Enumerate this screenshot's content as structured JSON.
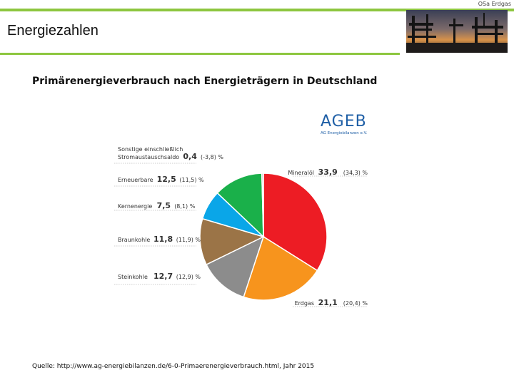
{
  "header": {
    "corner_label": "OSa Erdgas",
    "title": "Energiezahlen"
  },
  "subtitle": "Primärenergieverbrauch nach Energieträgern in Deutschland",
  "logo": {
    "text": "AGEB",
    "subtext": "AG Energiebilanzen e.V."
  },
  "source": "Quelle: http://www.ag-energiebilanzen.de/6-0-Primaerenergieverbrauch.html, Jahr 2015",
  "colors": {
    "accent": "#8dc63f",
    "logo": "#1f5fa6"
  },
  "chart_data": {
    "type": "pie",
    "unit": "%",
    "slices": [
      {
        "name": "Mineralöl",
        "value": 33.9,
        "value_label": "33,9",
        "prev_label": "(34,3) %",
        "color": "#ed1c24"
      },
      {
        "name": "Erdgas",
        "value": 21.1,
        "value_label": "21,1",
        "prev_label": "(20,4) %",
        "color": "#f7941d"
      },
      {
        "name": "Steinkohle",
        "value": 12.7,
        "value_label": "12,7",
        "prev_label": "(12,9) %",
        "color": "#8c8c8c"
      },
      {
        "name": "Braunkohle",
        "value": 11.8,
        "value_label": "11,8",
        "prev_label": "(11,9) %",
        "color": "#9b7447"
      },
      {
        "name": "Kernenergie",
        "value": 7.5,
        "value_label": "7,5",
        "prev_label": "(8,1) %",
        "color": "#0aa6e8"
      },
      {
        "name": "Erneuerbare",
        "value": 12.5,
        "value_label": "12,5",
        "prev_label": "(11,5) %",
        "color": "#1ab04a"
      },
      {
        "name": "Sonstige einschließlich\nStromaustauschsaldo",
        "value": 0.4,
        "value_label": "0,4",
        "prev_label": "(-3,8) %",
        "color": "#b5b5b5"
      }
    ]
  }
}
